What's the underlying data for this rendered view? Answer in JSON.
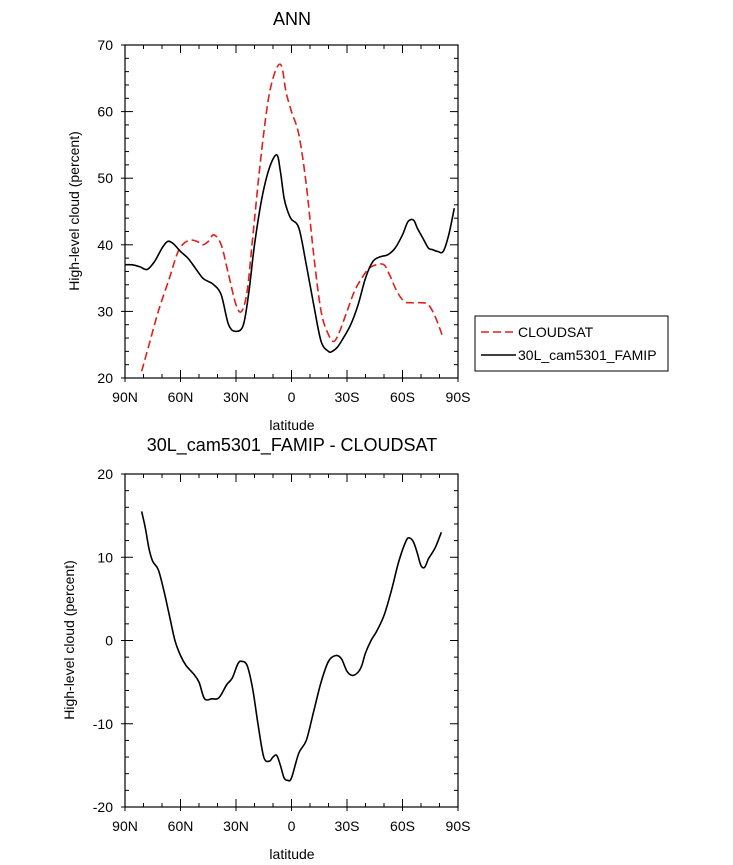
{
  "chart_data": [
    {
      "type": "line",
      "title": "ANN",
      "xlabel": "latitude",
      "ylabel": "High-level cloud (percent)",
      "xlim": [
        90,
        -90
      ],
      "ylim": [
        20,
        70
      ],
      "xticks": [
        90,
        60,
        30,
        0,
        -30,
        -60,
        -90
      ],
      "xtick_labels": [
        "90N",
        "60N",
        "30N",
        "0",
        "30S",
        "60S",
        "90S"
      ],
      "yticks": [
        20,
        30,
        40,
        50,
        60,
        70
      ],
      "ytick_labels": [
        "20",
        "30",
        "40",
        "50",
        "60",
        "70"
      ],
      "legend": "right",
      "series": [
        {
          "name": "CLOUDSAT",
          "color": "#e0201b",
          "dash": "dashed",
          "x": [
            81,
            77,
            72,
            66,
            62,
            59,
            55,
            51,
            48,
            45,
            42,
            38,
            34,
            30,
            27,
            24,
            21,
            17,
            13,
            10,
            7,
            5,
            3,
            0,
            -4,
            -8,
            -12,
            -16,
            -20,
            -23,
            -26,
            -30,
            -34,
            -38,
            -42,
            -46,
            -50,
            -53,
            -57,
            -61,
            -65,
            -70,
            -74,
            -78,
            -82
          ],
          "values": [
            21,
            25,
            30,
            35,
            38.5,
            40,
            40.7,
            40.5,
            40,
            40.5,
            41.5,
            40,
            35.5,
            31,
            30,
            33,
            41,
            52,
            61,
            65,
            67,
            66.5,
            63,
            60,
            56.5,
            49,
            38.5,
            30,
            26.5,
            25.5,
            27,
            30,
            33,
            35,
            36.5,
            37,
            37,
            35.5,
            33,
            31.5,
            31.3,
            31.3,
            31,
            29,
            26
          ]
        },
        {
          "name": "30L_cam5301_FAMIP",
          "color": "#000000",
          "dash": "solid",
          "x": [
            90,
            86,
            82,
            78,
            74,
            70,
            67,
            64,
            60,
            56,
            52,
            48,
            45,
            42,
            38,
            34,
            30,
            26,
            23,
            20,
            16,
            12,
            8,
            6,
            4,
            2,
            0,
            -4,
            -8,
            -12,
            -16,
            -20,
            -22,
            -25,
            -28,
            -32,
            -36,
            -40,
            -44,
            -48,
            -52,
            -56,
            -60,
            -63,
            -66,
            -68,
            -71,
            -74,
            -76,
            -79,
            -82,
            -85,
            -88
          ],
          "values": [
            37,
            37,
            36.7,
            36.3,
            37.5,
            39.5,
            40.5,
            40.2,
            39,
            38,
            36.5,
            35,
            34.5,
            34,
            32.5,
            28,
            27,
            28,
            33,
            40,
            47,
            51.5,
            53.5,
            51,
            47,
            45,
            43.8,
            42.5,
            37,
            31,
            25.5,
            24,
            24,
            24.7,
            26,
            28,
            31,
            35,
            37.5,
            38.2,
            38.5,
            39.5,
            41.5,
            43.5,
            43.7,
            42.5,
            41,
            39.5,
            39.3,
            39,
            39,
            41.5,
            45.5
          ]
        }
      ]
    },
    {
      "type": "line",
      "title": "30L_cam5301_FAMIP - CLOUDSAT",
      "xlabel": "latitude",
      "ylabel": "High-level cloud (percent)",
      "xlim": [
        90,
        -90
      ],
      "ylim": [
        -20,
        20
      ],
      "xticks": [
        90,
        60,
        30,
        0,
        -30,
        -60,
        -90
      ],
      "xtick_labels": [
        "90N",
        "60N",
        "30N",
        "0",
        "30S",
        "60S",
        "90S"
      ],
      "yticks": [
        -20,
        -10,
        0,
        10,
        20
      ],
      "ytick_labels": [
        "-20",
        "-10",
        "0",
        "10",
        "20"
      ],
      "series": [
        {
          "color": "#000000",
          "dash": "solid",
          "x": [
            81,
            79,
            77,
            75,
            72,
            69,
            66,
            63,
            60,
            57,
            53,
            50,
            47,
            43,
            40,
            38,
            35,
            32,
            29,
            27,
            24,
            21,
            18,
            15,
            12,
            10,
            8,
            6,
            4,
            2,
            0,
            -4,
            -8,
            -12,
            -16,
            -20,
            -24,
            -27,
            -30,
            -33,
            -36,
            -38,
            -40,
            -43,
            -46,
            -50,
            -54,
            -58,
            -62,
            -64,
            -66,
            -68,
            -70,
            -72,
            -74,
            -76,
            -78,
            -81
          ],
          "values": [
            15.5,
            13.5,
            11,
            9.5,
            8.5,
            6,
            3,
            0,
            -1.8,
            -3,
            -4,
            -5,
            -7,
            -7,
            -7,
            -6.5,
            -5.3,
            -4.5,
            -2.8,
            -2.5,
            -3,
            -5.8,
            -10.2,
            -14,
            -14.5,
            -14,
            -13.8,
            -15,
            -16.5,
            -16.8,
            -16.5,
            -13.5,
            -12,
            -8.5,
            -5,
            -2.5,
            -1.8,
            -2.2,
            -3.7,
            -4.2,
            -3.8,
            -3,
            -1.5,
            0,
            1.1,
            3,
            6,
            9.5,
            12,
            12.3,
            11.8,
            10.5,
            9,
            8.8,
            9.8,
            10.5,
            11.3,
            13
          ]
        }
      ]
    }
  ]
}
